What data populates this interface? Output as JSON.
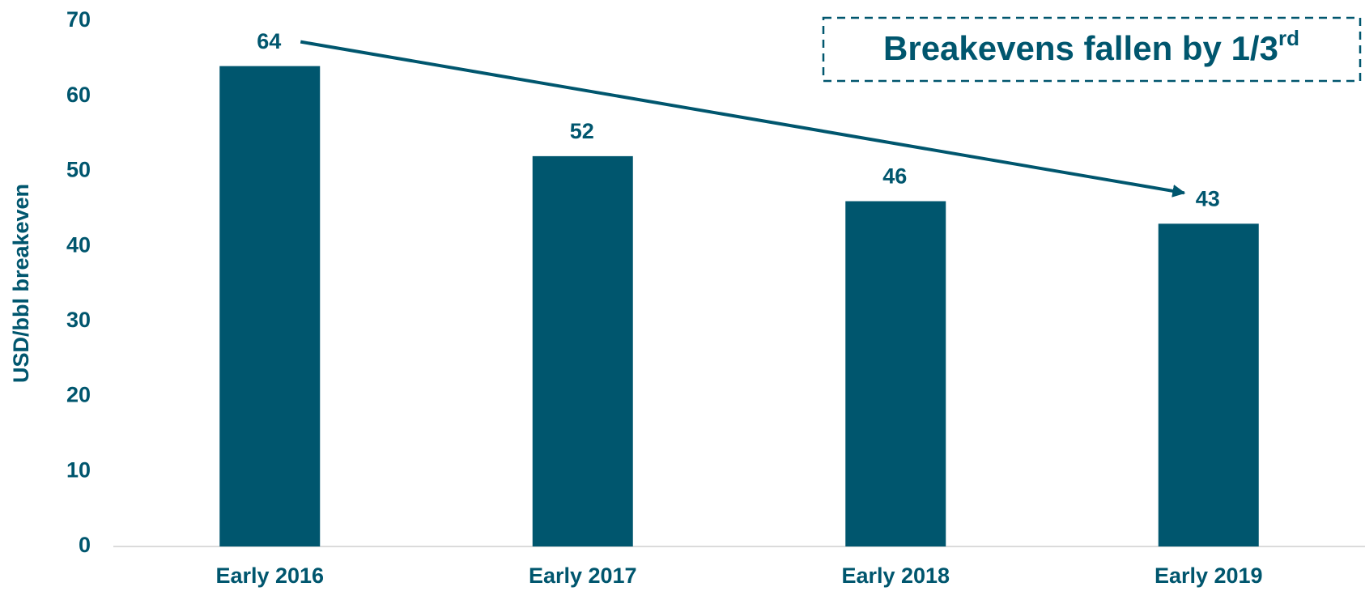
{
  "chart_data": {
    "type": "bar",
    "y_label": "USD/bbl breakeven",
    "annotation": {
      "text": "Breakevens fallen by 1/3",
      "superscript": "rd"
    },
    "categories": [
      "Early 2016",
      "Early 2017",
      "Early 2018",
      "Early 2019"
    ],
    "values": [
      64,
      52,
      46,
      43
    ],
    "color": "#00566e",
    "ylim": [
      0,
      70
    ],
    "yticks": [
      0,
      10,
      20,
      30,
      40,
      50,
      60,
      70
    ],
    "grid": false
  }
}
